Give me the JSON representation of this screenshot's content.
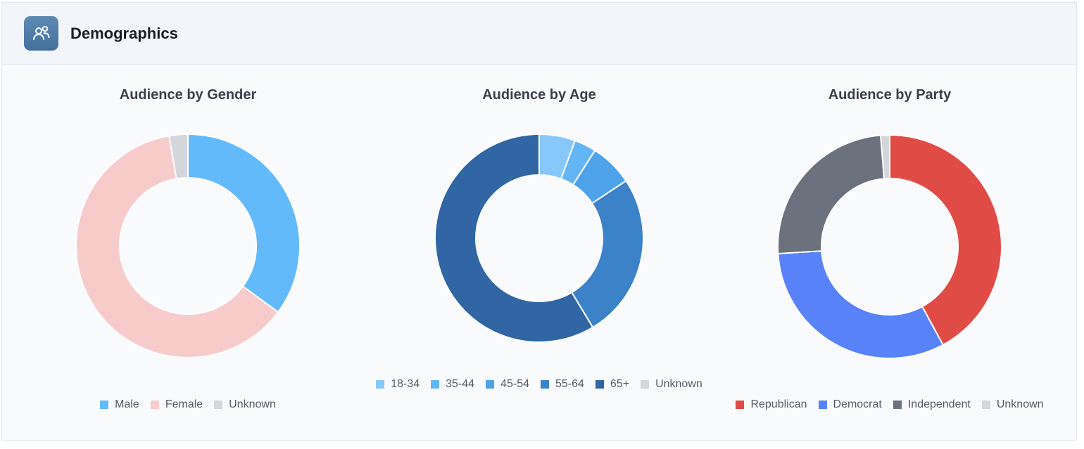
{
  "header": {
    "title": "Demographics",
    "icon": "users-icon"
  },
  "chart_data": [
    {
      "type": "pie",
      "variant": "donut",
      "title": "Audience by Gender",
      "legend_position": "bottom",
      "slices": [
        {
          "label": "Male",
          "value": 35.1,
          "color": "#63bafa"
        },
        {
          "label": "Female",
          "value": 62.2,
          "color": "#f8cbcb"
        },
        {
          "label": "Unknown",
          "value": 2.7,
          "color": "#d4d6dc"
        }
      ]
    },
    {
      "type": "pie",
      "variant": "donut",
      "title": "Audience by Age",
      "legend_position": "bottom",
      "slices": [
        {
          "label": "18-34",
          "value": 5.6,
          "color": "#86c8fb"
        },
        {
          "label": "35-44",
          "value": 3.4,
          "color": "#63b6f6"
        },
        {
          "label": "45-54",
          "value": 6.7,
          "color": "#4ea3ea"
        },
        {
          "label": "55-64",
          "value": 25.7,
          "color": "#3b82c8"
        },
        {
          "label": "65+",
          "value": 58.6,
          "color": "#2f66a3"
        },
        {
          "label": "Unknown",
          "value": 0,
          "color": "#d4d6dc"
        }
      ]
    },
    {
      "type": "pie",
      "variant": "donut",
      "title": "Audience by Party",
      "legend_position": "bottom",
      "slices": [
        {
          "label": "Republican",
          "value": 42.1,
          "color": "#e04b45"
        },
        {
          "label": "Democrat",
          "value": 31.9,
          "color": "#5882f8"
        },
        {
          "label": "Independent",
          "value": 24.7,
          "color": "#6b717d"
        },
        {
          "label": "Unknown",
          "value": 1.3,
          "color": "#d4d6dc"
        }
      ]
    }
  ]
}
